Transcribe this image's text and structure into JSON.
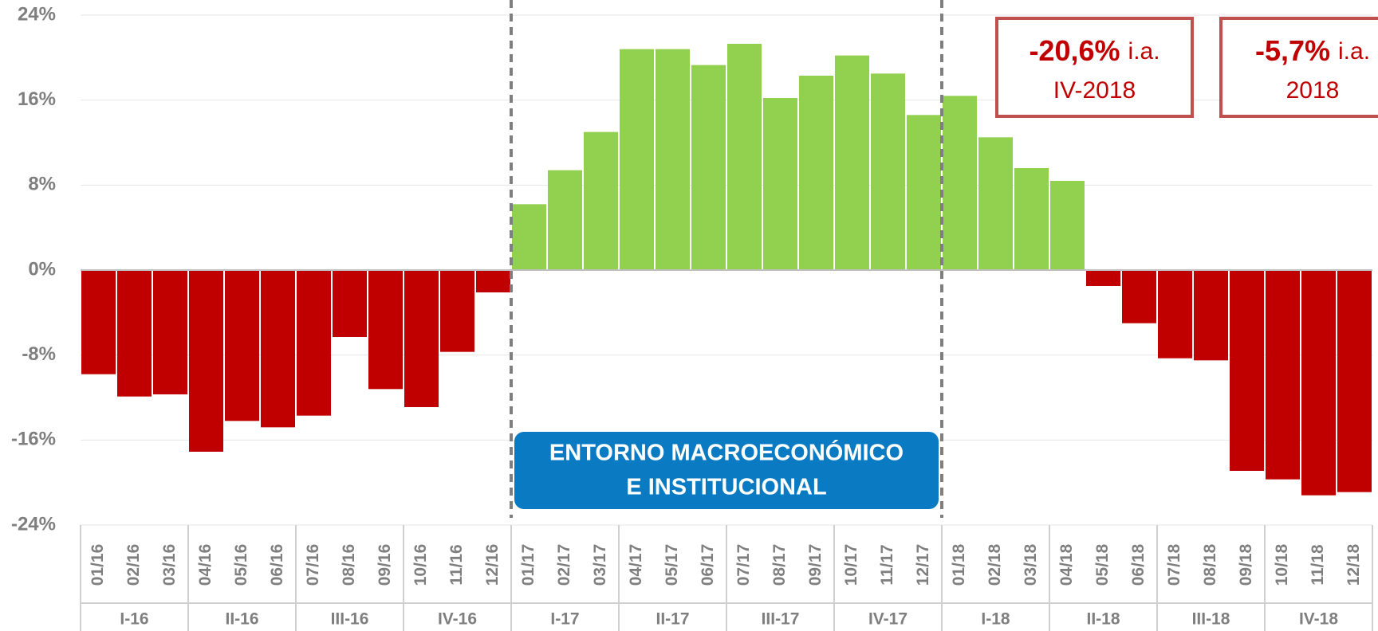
{
  "chart_data": {
    "type": "bar",
    "categories": [
      "01/16",
      "02/16",
      "03/16",
      "04/16",
      "05/16",
      "06/16",
      "07/16",
      "08/16",
      "09/16",
      "10/16",
      "11/16",
      "12/16",
      "01/17",
      "02/17",
      "03/17",
      "04/17",
      "05/17",
      "06/17",
      "07/17",
      "08/17",
      "09/17",
      "10/17",
      "11/17",
      "12/17",
      "01/18",
      "02/18",
      "03/18",
      "04/18",
      "05/18",
      "06/18",
      "07/18",
      "08/18",
      "09/18",
      "10/18",
      "11/18",
      "12/18"
    ],
    "values": [
      -9.8,
      -11.9,
      -11.7,
      -17.1,
      -14.2,
      -14.8,
      -13.7,
      -6.3,
      -11.2,
      -12.9,
      -7.7,
      -2.1,
      6.2,
      9.4,
      13.0,
      20.8,
      20.8,
      19.3,
      21.3,
      16.2,
      18.3,
      20.2,
      18.5,
      14.6,
      16.4,
      12.5,
      9.6,
      8.4,
      -1.5,
      -5.0,
      -8.3,
      -8.5,
      -18.9,
      -19.7,
      -21.2,
      -20.9
    ],
    "groups": [
      "I-16",
      "II-16",
      "III-16",
      "IV-16",
      "I-17",
      "II-17",
      "III-17",
      "IV-17",
      "I-18",
      "II-18",
      "III-18",
      "IV-18"
    ],
    "positive_color": "#92d050",
    "negative_color": "#c00000",
    "ylim": [
      -24,
      24
    ],
    "yticks": [
      {
        "value": -24,
        "label": "-24%"
      },
      {
        "value": -16,
        "label": "-16%"
      },
      {
        "value": -8,
        "label": "-8%"
      },
      {
        "value": 0,
        "label": "0%"
      },
      {
        "value": 8,
        "label": "8%"
      },
      {
        "value": 16,
        "label": "16%"
      },
      {
        "value": 24,
        "label": "24%"
      }
    ],
    "grid": true,
    "annotations": [
      {
        "value_text": "-20,6%",
        "suffix": "i.a.",
        "period": "IV-2018"
      },
      {
        "value_text": "-5,7%",
        "suffix": "i.a.",
        "period": "2018"
      }
    ],
    "highlight": {
      "lines": [
        "ENTORNO MACROECONÓMICO",
        "E INSTITUCIONAL"
      ]
    }
  }
}
